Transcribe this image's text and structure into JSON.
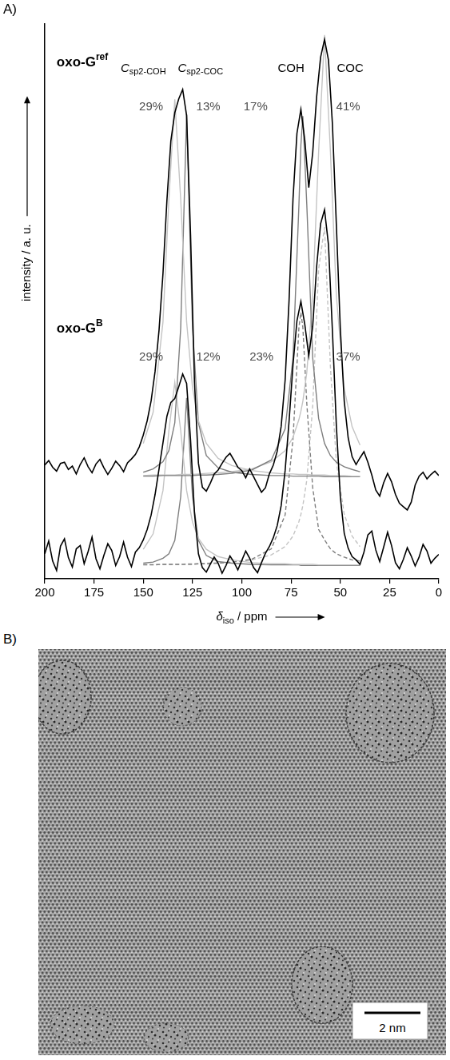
{
  "panel_labels": [
    "A)",
    "B)"
  ],
  "image": {
    "scale_bar": "2 nm"
  },
  "chart_data": {
    "type": "line",
    "x_label": {
      "text": "δ",
      "sub": "iso",
      "suffix": " / ppm"
    },
    "y_label": "intensity / a. u.",
    "xlim": [
      200,
      0
    ],
    "xticks": [
      200,
      175,
      150,
      125,
      100,
      75,
      50,
      25,
      0
    ],
    "ylim": [
      0,
      100
    ],
    "tick_labels": "x",
    "grid": false,
    "series": [
      {
        "color": "#000000",
        "line_style": "solid",
        "x": [
          200,
          198,
          196,
          194,
          192,
          190,
          188,
          186,
          184,
          182,
          180,
          178,
          176,
          174,
          172,
          170,
          168,
          166,
          164,
          162,
          160,
          158,
          156,
          154,
          152,
          150,
          148,
          146,
          144,
          142,
          140,
          138,
          136,
          134,
          132,
          130,
          128,
          126,
          124,
          122,
          120,
          118,
          116,
          114,
          112,
          110,
          108,
          106,
          104,
          102,
          100,
          98,
          96,
          94,
          92,
          90,
          88,
          86,
          84,
          82,
          80,
          78,
          76,
          74,
          72,
          70,
          68,
          66,
          64,
          62,
          60,
          58,
          56,
          54,
          52,
          50,
          48,
          46,
          44,
          42,
          40,
          38,
          36,
          34,
          32,
          30,
          28,
          26,
          24,
          22,
          20,
          18,
          16,
          14,
          12,
          10,
          8,
          6,
          4,
          2,
          0
        ],
        "values": [
          20.5,
          21.3,
          20.1,
          19.4,
          20.8,
          21.0,
          19.7,
          20.3,
          18.9,
          20.6,
          21.8,
          20.2,
          19.1,
          20.7,
          21.5,
          20.0,
          18.8,
          19.9,
          21.2,
          20.4,
          19.3,
          20.9,
          21.6,
          22.4,
          23.8,
          25.9,
          28.5,
          32.1,
          37.4,
          44.8,
          55.0,
          68.2,
          78.9,
          84.0,
          86.5,
          88.2,
          83.5,
          62.0,
          35.4,
          20.8,
          16.5,
          15.8,
          17.2,
          18.9,
          19.6,
          20.8,
          21.9,
          22.6,
          21.4,
          20.1,
          19.5,
          18.2,
          19.8,
          18.4,
          17.0,
          15.6,
          16.4,
          18.9,
          20.5,
          23.0,
          27.5,
          35.8,
          50.2,
          68.5,
          80.3,
          84.6,
          79.0,
          70.5,
          76.8,
          86.9,
          94.0,
          97.2,
          93.5,
          82.0,
          63.8,
          45.2,
          32.0,
          25.4,
          22.0,
          20.6,
          21.8,
          22.9,
          21.0,
          18.7,
          16.0,
          14.9,
          17.3,
          19.0,
          17.5,
          15.2,
          13.6,
          13.0,
          12.4,
          13.8,
          16.9,
          18.5,
          19.2,
          18.0,
          18.8,
          19.4,
          18.6
        ]
      },
      {
        "color": "#000000",
        "line_style": "solid",
        "x": [
          200,
          198,
          196,
          194,
          192,
          190,
          188,
          186,
          184,
          182,
          180,
          178,
          176,
          174,
          172,
          170,
          168,
          166,
          164,
          162,
          160,
          158,
          156,
          154,
          152,
          150,
          148,
          146,
          144,
          142,
          140,
          138,
          136,
          134,
          132,
          130,
          128,
          126,
          124,
          122,
          120,
          118,
          116,
          114,
          112,
          110,
          108,
          106,
          104,
          102,
          100,
          98,
          96,
          94,
          92,
          90,
          88,
          86,
          84,
          82,
          80,
          78,
          76,
          74,
          72,
          70,
          68,
          66,
          64,
          62,
          60,
          58,
          56,
          54,
          52,
          50,
          48,
          46,
          44,
          42,
          40,
          38,
          36,
          34,
          32,
          30,
          28,
          26,
          24,
          22,
          20,
          18,
          16,
          14,
          12,
          10,
          8,
          6,
          4,
          2,
          0
        ],
        "values": [
          4.5,
          6.8,
          3.2,
          1.5,
          5.9,
          7.2,
          3.8,
          2.1,
          5.4,
          6.0,
          2.7,
          4.9,
          7.5,
          3.6,
          1.8,
          4.2,
          6.3,
          5.1,
          2.4,
          4.0,
          6.6,
          3.9,
          2.2,
          4.8,
          5.6,
          7.0,
          8.9,
          11.5,
          15.2,
          19.8,
          24.5,
          29.3,
          31.8,
          32.5,
          34.6,
          36.9,
          35.2,
          25.0,
          11.8,
          4.5,
          2.0,
          1.2,
          2.6,
          3.9,
          2.8,
          1.0,
          2.4,
          4.1,
          3.0,
          1.6,
          3.3,
          5.0,
          3.7,
          2.0,
          1.1,
          2.9,
          4.6,
          5.8,
          7.4,
          9.6,
          13.2,
          19.5,
          28.4,
          38.6,
          46.5,
          50.0,
          45.8,
          40.2,
          45.5,
          56.3,
          64.0,
          66.5,
          60.2,
          44.7,
          27.6,
          14.8,
          8.2,
          5.5,
          4.0,
          3.4,
          2.6,
          4.8,
          7.9,
          8.6,
          5.2,
          3.1,
          5.7,
          8.4,
          6.0,
          2.9,
          1.8,
          3.5,
          5.6,
          4.1,
          2.3,
          3.9,
          6.2,
          5.0,
          2.8,
          3.7,
          4.4
        ]
      },
      {
        "color": "#c4c4c4",
        "line_style": "solid",
        "x": [
          150,
          145,
          140,
          137,
          134,
          131,
          128,
          125,
          122,
          118,
          112,
          105,
          95,
          85,
          78,
          74,
          71,
          70,
          69,
          67,
          64,
          61,
          58,
          55,
          52,
          48,
          44,
          40
        ],
        "values": [
          24.4,
          30.0,
          46.3,
          68.4,
          86.4,
          68.4,
          46.3,
          34.4,
          28.5,
          24.4,
          21.7,
          20.4,
          19.5,
          19.1,
          18.9,
          18.9,
          18.8,
          18.8,
          18.8,
          18.8,
          18.7,
          18.7,
          18.7,
          18.6,
          18.6,
          18.6,
          18.5,
          18.5
        ]
      },
      {
        "color": "#7f7f7f",
        "line_style": "solid",
        "x": [
          150,
          145,
          140,
          137,
          134,
          131,
          128,
          125,
          122,
          118,
          112,
          105,
          95,
          85,
          78,
          74,
          71,
          70,
          69,
          67,
          64,
          61,
          58,
          55,
          52,
          48,
          44,
          40
        ],
        "values": [
          19.2,
          19.8,
          21.1,
          23.1,
          28.1,
          45.2,
          83.7,
          45.2,
          28.1,
          22.2,
          20.0,
          19.2,
          18.8,
          18.6,
          18.6,
          18.5,
          18.5,
          18.5,
          18.5,
          18.5,
          18.5,
          18.5,
          18.4,
          18.4,
          18.4,
          18.4,
          18.4,
          18.4
        ]
      },
      {
        "color": "#7f7f7f",
        "line_style": "solid",
        "x": [
          150,
          145,
          140,
          137,
          134,
          131,
          128,
          125,
          122,
          118,
          112,
          105,
          95,
          85,
          78,
          74,
          71,
          70,
          69,
          67,
          64,
          61,
          58,
          55,
          52,
          48,
          44,
          40
        ],
        "values": [
          18.5,
          18.5,
          18.6,
          18.6,
          18.6,
          18.6,
          18.6,
          18.6,
          18.7,
          18.7,
          18.8,
          19.0,
          19.6,
          21.4,
          27.0,
          39.8,
          67.4,
          78.2,
          83.4,
          67.4,
          39.8,
          28.9,
          24.4,
          22.2,
          21.0,
          20.2,
          19.7,
          19.3
        ]
      },
      {
        "color": "#c4c4c4",
        "line_style": "solid",
        "x": [
          150,
          145,
          140,
          137,
          134,
          131,
          128,
          125,
          122,
          118,
          112,
          105,
          95,
          85,
          78,
          74,
          71,
          70,
          69,
          67,
          64,
          61,
          58,
          55,
          52,
          48,
          44,
          40
        ],
        "values": [
          18.6,
          18.7,
          18.7,
          18.7,
          18.7,
          18.8,
          18.8,
          18.8,
          18.9,
          19.0,
          19.1,
          19.3,
          19.8,
          21.1,
          23.1,
          25.5,
          28.7,
          30.2,
          32.0,
          37.2,
          51.0,
          76.9,
          98.0,
          76.9,
          51.0,
          34.3,
          27.4,
          24.1
        ]
      },
      {
        "color": "#c4c4c4",
        "line_style": "solid",
        "x": [
          150,
          145,
          140,
          137,
          134,
          131,
          128,
          125,
          122,
          118,
          112,
          105,
          95,
          85,
          78,
          74,
          71,
          70,
          69,
          67,
          64,
          61,
          58,
          55,
          52,
          48,
          44,
          40
        ],
        "values": [
          5.3,
          8.1,
          15.9,
          26.7,
          35.4,
          26.7,
          15.9,
          10.2,
          7.3,
          5.3,
          4.0,
          3.4,
          2.9,
          2.7,
          2.7,
          2.6,
          2.6,
          2.6,
          2.6,
          2.6,
          2.6,
          2.5,
          2.5,
          2.5,
          2.5,
          2.5,
          2.5,
          2.5
        ]
      },
      {
        "color": "#7f7f7f",
        "line_style": "solid",
        "x": [
          150,
          145,
          140,
          137,
          134,
          131,
          128,
          125,
          122,
          118,
          112,
          105,
          95,
          85,
          78,
          74,
          71,
          70,
          69,
          67,
          64,
          61,
          58,
          55,
          52,
          48,
          44,
          40
        ],
        "values": [
          2.8,
          3.0,
          3.7,
          4.5,
          6.9,
          14.8,
          32.6,
          14.8,
          6.9,
          4.2,
          3.1,
          2.8,
          2.6,
          2.5,
          2.5,
          2.5,
          2.5,
          2.4,
          2.4,
          2.4,
          2.4,
          2.4,
          2.4,
          2.4,
          2.4,
          2.4,
          2.4,
          2.4
        ]
      },
      {
        "color": "#7f7f7f",
        "line_style": "dashed",
        "x": [
          150,
          145,
          140,
          137,
          134,
          131,
          128,
          125,
          122,
          118,
          112,
          105,
          95,
          85,
          78,
          74,
          71,
          70,
          69,
          67,
          64,
          61,
          58,
          55,
          52,
          48,
          44,
          40
        ],
        "values": [
          2.5,
          2.5,
          2.6,
          2.6,
          2.6,
          2.6,
          2.6,
          2.6,
          2.7,
          2.7,
          2.8,
          3.0,
          3.5,
          5.4,
          11.5,
          25.2,
          45.3,
          48.0,
          45.3,
          31.6,
          16.4,
          8.9,
          7.0,
          5.4,
          4.5,
          3.9,
          3.4,
          3.2
        ]
      },
      {
        "color": "#c4c4c4",
        "line_style": "dashed",
        "x": [
          150,
          145,
          140,
          137,
          134,
          131,
          128,
          125,
          122,
          118,
          112,
          105,
          95,
          85,
          78,
          74,
          71,
          70,
          69,
          67,
          64,
          61,
          58,
          55,
          52,
          48,
          44,
          40
        ],
        "values": [
          2.6,
          2.6,
          2.6,
          2.6,
          2.6,
          2.6,
          2.7,
          2.7,
          2.7,
          2.8,
          2.9,
          3.0,
          3.4,
          4.3,
          5.8,
          7.7,
          10.3,
          11.6,
          13.2,
          17.8,
          31.1,
          55.8,
          63.4,
          38.1,
          21.0,
          11.6,
          7.7,
          5.8
        ]
      }
    ],
    "sample_labels": [
      {
        "text": "oxo-G",
        "sup": "ref",
        "x": 194,
        "y": 93
      },
      {
        "text": "oxo-G",
        "sup": "B",
        "x": 194,
        "y": 45
      }
    ],
    "peak_labels": [
      {
        "text": "C",
        "sub": "sp2-COH",
        "x": 150,
        "y": 92
      },
      {
        "text": "C",
        "sub": "sp2-COC",
        "x": 121,
        "y": 92
      },
      {
        "text": "COH",
        "x": 75,
        "y": 92
      },
      {
        "text": "COC",
        "x": 45,
        "y": 92
      }
    ],
    "area_labels": [
      {
        "text": "29%",
        "x": 146,
        "y": 85
      },
      {
        "text": "13%",
        "x": 117,
        "y": 85
      },
      {
        "text": "17%",
        "x": 93,
        "y": 85
      },
      {
        "text": "41%",
        "x": 46,
        "y": 85
      },
      {
        "text": "29%",
        "x": 146,
        "y": 40
      },
      {
        "text": "12%",
        "x": 117,
        "y": 40
      },
      {
        "text": "23%",
        "x": 90,
        "y": 40
      },
      {
        "text": "37%",
        "x": 46,
        "y": 40
      }
    ]
  }
}
